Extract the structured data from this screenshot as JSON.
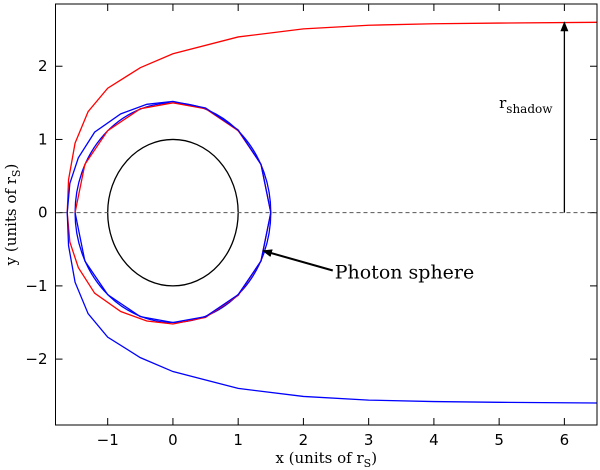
{
  "chart_data": {
    "type": "line",
    "xlabel": [
      "x (units of r",
      "S",
      ")"
    ],
    "ylabel": [
      "y (units of r",
      "S",
      ")"
    ],
    "xlim": [
      -1.8,
      6.5
    ],
    "ylim": [
      -2.9,
      2.85
    ],
    "xticks": [
      -1,
      0,
      1,
      2,
      3,
      4,
      5,
      6
    ],
    "yticks": [
      -2,
      -1,
      0,
      1,
      2
    ],
    "series": [
      {
        "color": "#555555",
        "dashed": true,
        "x": [
          -1.8,
          6.5
        ],
        "y": [
          0,
          0
        ]
      },
      {
        "color": "#ff0000",
        "x": [
          6.5,
          5,
          4,
          3,
          2,
          1,
          0,
          -0.5,
          -1,
          -1.3,
          -1.5,
          -1.6,
          -1.62,
          -1.58,
          -1.45,
          -1.2,
          -0.8,
          -0.4,
          0,
          0.5,
          1,
          1.35,
          1.5,
          1.35,
          1,
          0.5,
          0,
          -0.5,
          -1,
          -1.35,
          -1.5
        ],
        "y": [
          2.6,
          2.59,
          2.58,
          2.56,
          2.51,
          2.4,
          2.17,
          1.98,
          1.7,
          1.38,
          0.95,
          0.45,
          0,
          -0.4,
          -0.75,
          -1.1,
          -1.35,
          -1.48,
          -1.52,
          -1.43,
          -1.13,
          -0.66,
          0,
          0.66,
          1.12,
          1.42,
          1.5,
          1.42,
          1.12,
          0.66,
          0
        ]
      },
      {
        "color": "#0000ff",
        "x": [
          6.5,
          5,
          4,
          3,
          2,
          1,
          0,
          -0.5,
          -1,
          -1.3,
          -1.5,
          -1.6,
          -1.62,
          -1.58,
          -1.45,
          -1.2,
          -0.8,
          -0.4,
          0,
          0.5,
          1,
          1.35,
          1.5,
          1.35,
          1,
          0.5,
          0,
          -0.5,
          -1,
          -1.35,
          -1.5
        ],
        "y": [
          -2.6,
          -2.59,
          -2.58,
          -2.56,
          -2.51,
          -2.4,
          -2.17,
          -1.98,
          -1.7,
          -1.38,
          -0.95,
          -0.45,
          0,
          0.4,
          0.75,
          1.1,
          1.35,
          1.48,
          1.52,
          1.43,
          1.13,
          0.66,
          0,
          -0.66,
          -1.12,
          -1.42,
          -1.5,
          -1.42,
          -1.12,
          -0.66,
          0
        ]
      }
    ],
    "circles": [
      {
        "cx": 0,
        "cy": 0,
        "r": 1,
        "color": "#000000"
      },
      {
        "cx": 0,
        "cy": 0,
        "r": 1.5,
        "color": "#0000ff"
      }
    ],
    "shadow_arrow": {
      "label": "r",
      "subscript": "shadow",
      "x": 6,
      "from": 0,
      "to": 2.6,
      "label_x": 5.0,
      "label_y": 1.43
    },
    "photon_annotation": {
      "text": "Photon sphere",
      "x": 2.48,
      "y": -0.9,
      "arrow_from": [
        2.45,
        -0.79
      ],
      "arrow_to": [
        1.38,
        -0.52
      ]
    }
  }
}
